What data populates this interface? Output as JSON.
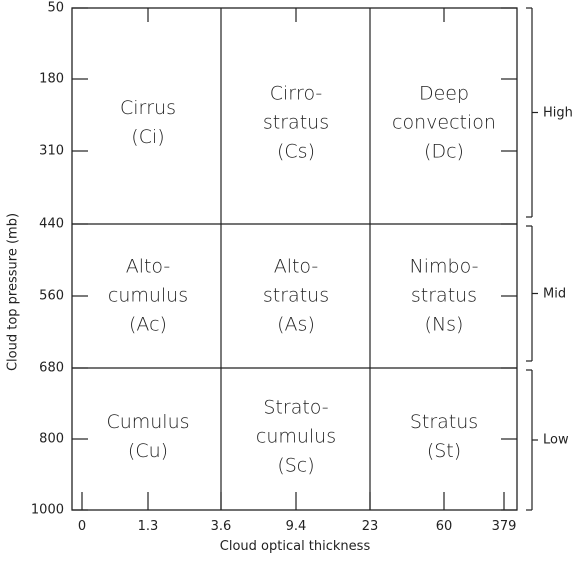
{
  "axes": {
    "y_title": "Cloud top pressure (mb)",
    "x_title": "Cloud optical thickness",
    "y_ticks": [
      "50",
      "180",
      "310",
      "440",
      "560",
      "680",
      "800",
      "1000"
    ],
    "x_ticks": [
      "0",
      "1.3",
      "3.6",
      "9.4",
      "23",
      "60",
      "379"
    ]
  },
  "bands": [
    "High",
    "Mid",
    "Low"
  ],
  "cells": [
    {
      "row": 0,
      "col": 0,
      "lines": [
        "Cirrus",
        "(Ci)"
      ]
    },
    {
      "row": 0,
      "col": 1,
      "lines": [
        "Cirro-",
        "stratus",
        "(Cs)"
      ]
    },
    {
      "row": 0,
      "col": 2,
      "lines": [
        "Deep",
        "convection",
        "(Dc)"
      ]
    },
    {
      "row": 1,
      "col": 0,
      "lines": [
        "Alto-",
        "cumulus",
        "(Ac)"
      ]
    },
    {
      "row": 1,
      "col": 1,
      "lines": [
        "Alto-",
        "stratus",
        "(As)"
      ]
    },
    {
      "row": 1,
      "col": 2,
      "lines": [
        "Nimbo-",
        "stratus",
        "(Ns)"
      ]
    },
    {
      "row": 2,
      "col": 0,
      "lines": [
        "Cumulus",
        "(Cu)"
      ]
    },
    {
      "row": 2,
      "col": 1,
      "lines": [
        "Strato-",
        "cumulus",
        "(Sc)"
      ]
    },
    {
      "row": 2,
      "col": 2,
      "lines": [
        "Stratus",
        "(St)"
      ]
    }
  ]
}
